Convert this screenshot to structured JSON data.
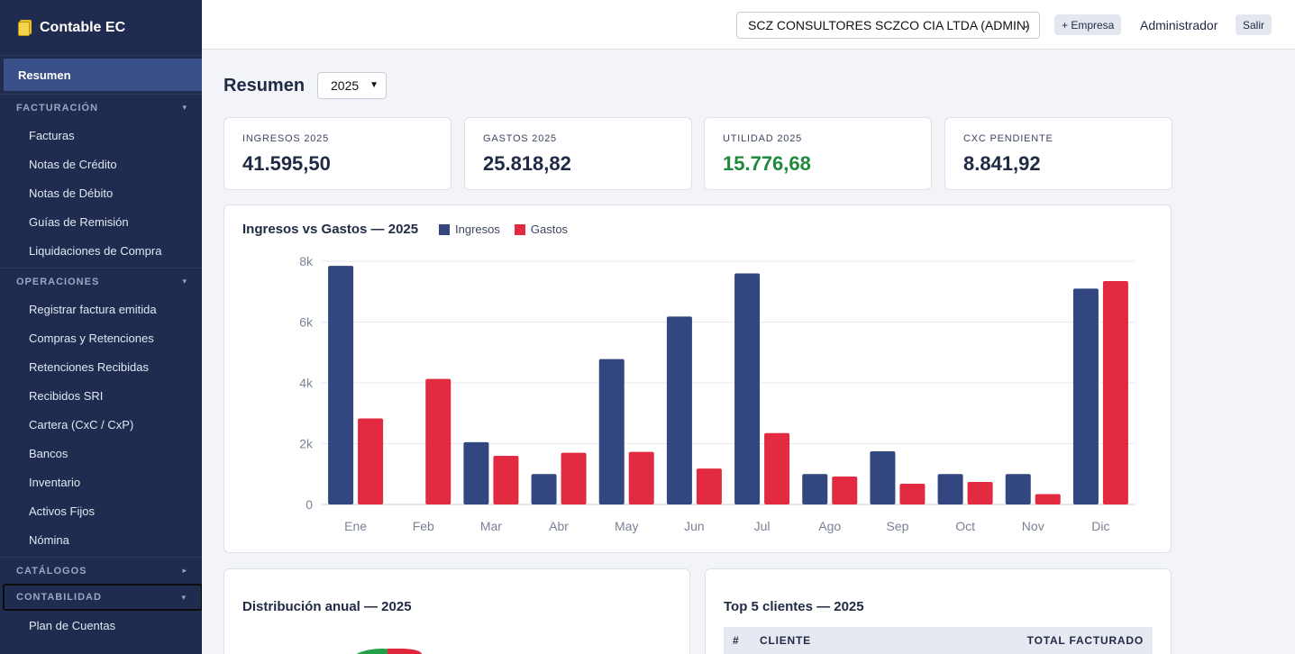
{
  "app": {
    "name": "Contable EC"
  },
  "sidebar": {
    "active": "Resumen",
    "sections": [
      {
        "title": "FACTURACIÓN",
        "items": [
          "Facturas",
          "Notas de Crédito",
          "Notas de Débito",
          "Guías de Remisión",
          "Liquidaciones de Compra"
        ]
      },
      {
        "title": "OPERACIONES",
        "items": [
          "Registrar factura emitida",
          "Compras y Retenciones",
          "Retenciones Recibidas",
          "Recibidos SRI",
          "Cartera (CxC / CxP)",
          "Bancos",
          "Inventario",
          "Activos Fijos",
          "Nómina"
        ]
      },
      {
        "title": "CATÁLOGOS",
        "items": []
      },
      {
        "title": "CONTABILIDAD",
        "items": [
          "Plan de Cuentas"
        ]
      }
    ]
  },
  "topbar": {
    "company": "SCZ CONSULTORES SCZCO CIA LTDA (ADMIN)",
    "add_company": "+ Empresa",
    "user": "Administrador",
    "logout": "Salir"
  },
  "main": {
    "title": "Resumen",
    "year": "2025",
    "kpis": [
      {
        "label": "INGRESOS 2025",
        "value": "41.595,50"
      },
      {
        "label": "GASTOS 2025",
        "value": "25.818,82"
      },
      {
        "label": "UTILIDAD 2025",
        "value": "15.776,68"
      },
      {
        "label": "CXC PENDIENTE",
        "value": "8.841,92"
      }
    ],
    "distribution_title": "Distribución anual — 2025",
    "top_clients": {
      "title": "Top 5 clientes — 2025",
      "columns": [
        "#",
        "CLIENTE",
        "TOTAL FACTURADO"
      ]
    }
  },
  "colors": {
    "ingresos": "#32477f",
    "gastos": "#e22a40",
    "positive": "#1f8a3b",
    "sidebar": "#1f2c4f"
  },
  "chart_data": {
    "type": "bar",
    "title": "Ingresos vs Gastos — 2025",
    "categories": [
      "Ene",
      "Feb",
      "Mar",
      "Abr",
      "May",
      "Jun",
      "Jul",
      "Ago",
      "Sep",
      "Oct",
      "Nov",
      "Dic"
    ],
    "series": [
      {
        "name": "Ingresos",
        "values": [
          7850,
          0,
          2050,
          1000,
          4780,
          6180,
          7600,
          1000,
          1750,
          1000,
          1000,
          7100
        ]
      },
      {
        "name": "Gastos",
        "values": [
          2830,
          4130,
          1600,
          1700,
          1730,
          1180,
          2350,
          920,
          680,
          740,
          340,
          7350
        ]
      }
    ],
    "yticks": [
      "0",
      "2k",
      "4k",
      "6k",
      "8k"
    ],
    "ylim": [
      0,
      8000
    ],
    "legend": "top",
    "grid": true
  }
}
